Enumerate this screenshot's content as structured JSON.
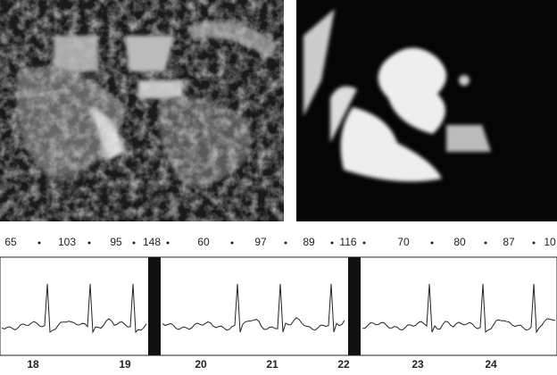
{
  "interval_labels": [
    "65",
    "103",
    "95",
    "148",
    "60",
    "97",
    "89",
    "116",
    "70",
    "80",
    "87",
    "10"
  ],
  "beat_labels": [
    "18",
    "19",
    "20",
    "21",
    "22",
    "23",
    "24"
  ]
}
